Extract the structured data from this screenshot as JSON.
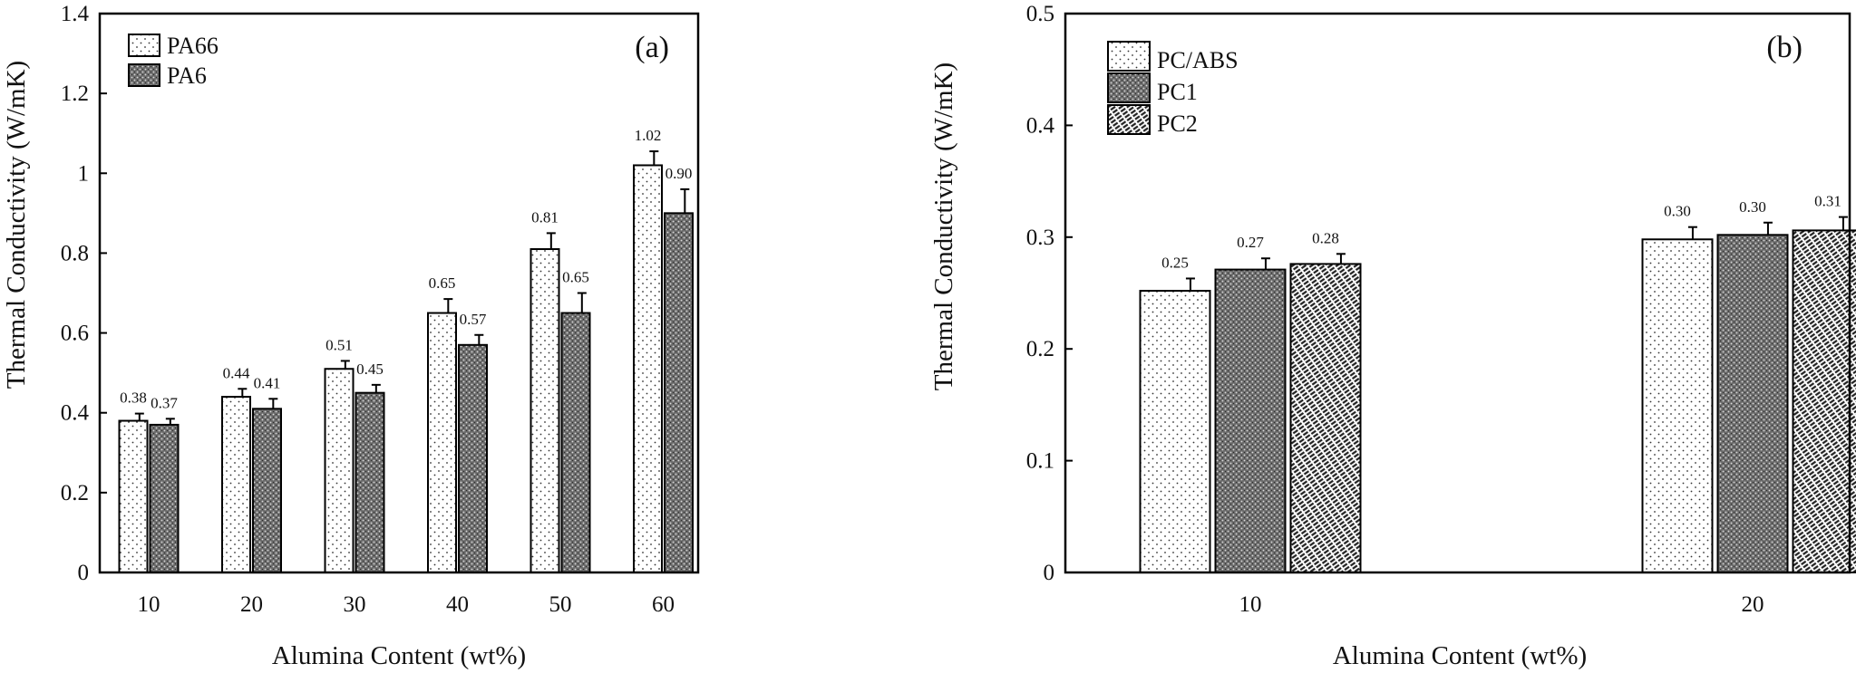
{
  "chart_data": [
    {
      "type": "bar",
      "panel_label": "(a)",
      "xlabel": "Alumina Content (wt%)",
      "ylabel": "Thermal Conductivity (W/mK)",
      "categories": [
        "10",
        "20",
        "30",
        "40",
        "50",
        "60"
      ],
      "ylim": [
        0,
        1.4
      ],
      "yticks": [
        0,
        0.2,
        0.4,
        0.6,
        0.8,
        1,
        1.2,
        1.4
      ],
      "ytick_labels": [
        "0",
        "0.2",
        "0.4",
        "0.6",
        "0.8",
        "1",
        "1.2",
        "1.4"
      ],
      "grid": false,
      "legend_position": "top-left",
      "error_bars": true,
      "series": [
        {
          "name": "PA66",
          "pattern": "sparse-dots",
          "values": [
            0.38,
            0.44,
            0.51,
            0.65,
            0.81,
            1.02
          ],
          "errors": [
            0.018,
            0.02,
            0.02,
            0.035,
            0.04,
            0.035
          ],
          "data_labels": [
            "0.38",
            "0.44",
            "0.51",
            "0.65",
            "0.81",
            "1.02"
          ]
        },
        {
          "name": "PA6",
          "pattern": "dense-dots",
          "values": [
            0.37,
            0.41,
            0.45,
            0.57,
            0.65,
            0.9
          ],
          "errors": [
            0.015,
            0.025,
            0.02,
            0.025,
            0.05,
            0.06
          ],
          "data_labels": [
            "0.37",
            "0.41",
            "0.45",
            "0.57",
            "0.65",
            "0.90"
          ]
        }
      ]
    },
    {
      "type": "bar",
      "panel_label": "(b)",
      "xlabel": "Alumina Content (wt%)",
      "ylabel": "Thermal Conductivity (W/mK)",
      "categories": [
        "10",
        "20"
      ],
      "ylim": [
        0,
        0.5
      ],
      "yticks": [
        0,
        0.1,
        0.2,
        0.3,
        0.4,
        0.5
      ],
      "ytick_labels": [
        "0",
        "0.1",
        "0.2",
        "0.3",
        "0.4",
        "0.5"
      ],
      "grid": false,
      "legend_position": "top-left",
      "error_bars": true,
      "series": [
        {
          "name": "PC/ABS",
          "pattern": "sparse-dots",
          "values": [
            0.252,
            0.298
          ],
          "errors": [
            0.011,
            0.011
          ],
          "data_labels": [
            "0.25",
            "0.30"
          ]
        },
        {
          "name": "PC1",
          "pattern": "dense-dots",
          "values": [
            0.271,
            0.302
          ],
          "errors": [
            0.01,
            0.011
          ],
          "data_labels": [
            "0.27",
            "0.30"
          ]
        },
        {
          "name": "PC2",
          "pattern": "diagonal-hatch",
          "values": [
            0.276,
            0.306
          ],
          "errors": [
            0.009,
            0.012
          ],
          "data_labels": [
            "0.28",
            "0.31"
          ]
        }
      ]
    }
  ]
}
